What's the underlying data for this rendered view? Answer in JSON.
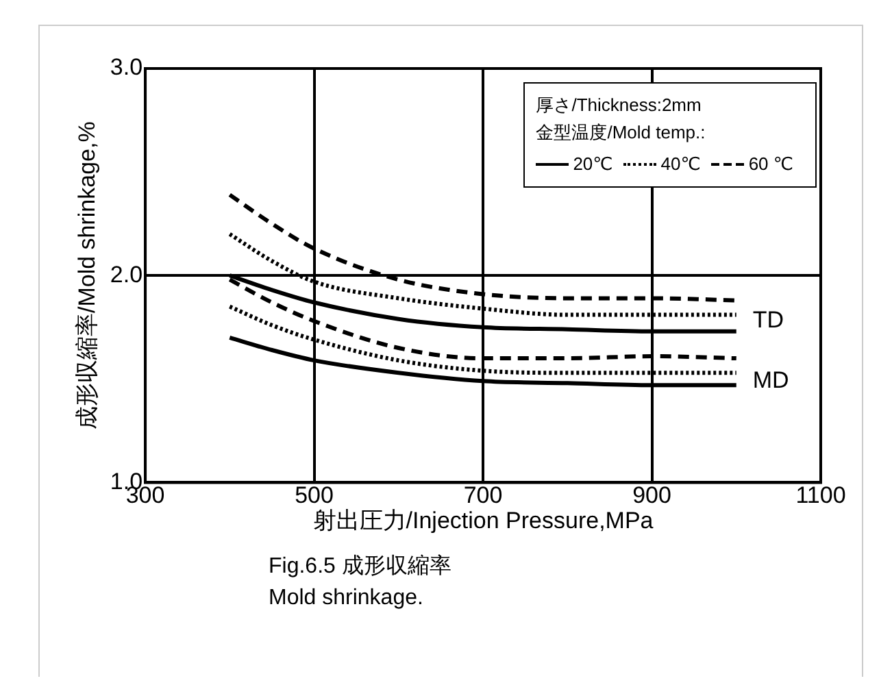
{
  "chart_data": {
    "type": "line",
    "xlabel": "射出圧力/Injection Pressure,MPa",
    "ylabel": "成形収縮率/Mold shrinkage,%",
    "legend_title": "厚さ/Thickness:2mm\n金型温度/Mold temp.:",
    "x": [
      400,
      450,
      500,
      600,
      700,
      800,
      900,
      1000
    ],
    "series": [
      {
        "name": "20℃",
        "color": "#000000",
        "line_style": "solid",
        "values": [
          2.0,
          1.93,
          1.87,
          1.79,
          1.75,
          1.74,
          1.73,
          1.73
        ]
      },
      {
        "name": "40℃",
        "color": "#000000",
        "line_style": "dotted",
        "values": [
          2.2,
          2.07,
          1.97,
          1.89,
          1.84,
          1.81,
          1.81,
          1.81
        ]
      },
      {
        "name": "60 ℃",
        "color": "#000000",
        "line_style": "dashed",
        "values": [
          2.39,
          2.25,
          2.13,
          1.98,
          1.91,
          1.89,
          1.89,
          1.88
        ]
      },
      {
        "color": "#000000",
        "line_style": "solid",
        "values": [
          1.7,
          1.64,
          1.59,
          1.53,
          1.49,
          1.48,
          1.47,
          1.47
        ]
      },
      {
        "color": "#000000",
        "line_style": "dotted",
        "values": [
          1.85,
          1.76,
          1.69,
          1.59,
          1.54,
          1.53,
          1.53,
          1.53
        ]
      },
      {
        "color": "#000000",
        "line_style": "dashed",
        "values": [
          1.98,
          1.87,
          1.78,
          1.65,
          1.6,
          1.6,
          1.61,
          1.6
        ]
      }
    ],
    "xlim": [
      300,
      1100
    ],
    "xticks": [
      300,
      500,
      700,
      900,
      1100
    ],
    "ylim": [
      1,
      3
    ],
    "yticks": [
      {
        "value": 1,
        "label": "1.0"
      },
      {
        "value": 2,
        "label": "2.0"
      },
      {
        "value": 3,
        "label": "3.0"
      }
    ],
    "grid": true,
    "legend": "top right",
    "marker": "none",
    "annotations": [
      {
        "text": "TD",
        "x": 1000,
        "y": 1.78
      },
      {
        "text": "MD",
        "x": 1000,
        "y": 1.49
      },
      "Fig.6.5 成形収縮率",
      "Mold shrinkage."
    ]
  }
}
